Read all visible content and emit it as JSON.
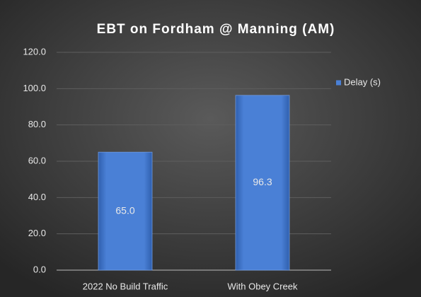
{
  "chart_data": {
    "type": "bar",
    "title": "EBT on Fordham @ Manning (AM)",
    "categories": [
      "2022 No Build Traffic",
      "With Obey Creek"
    ],
    "series": [
      {
        "name": "Delay (s)",
        "color": "#4a80d6",
        "values": [
          65.0,
          96.3
        ],
        "value_labels": [
          "65.0",
          "96.3"
        ]
      }
    ],
    "ylim": [
      0,
      120
    ],
    "yticks": [
      {
        "value": 0,
        "label": "0.0"
      },
      {
        "value": 20,
        "label": "20.0"
      },
      {
        "value": 40,
        "label": "40.0"
      },
      {
        "value": 60,
        "label": "60.0"
      },
      {
        "value": 80,
        "label": "80.0"
      },
      {
        "value": 100,
        "label": "100.0"
      },
      {
        "value": 120,
        "label": "120.0"
      }
    ],
    "grid": true,
    "legend": "right"
  }
}
